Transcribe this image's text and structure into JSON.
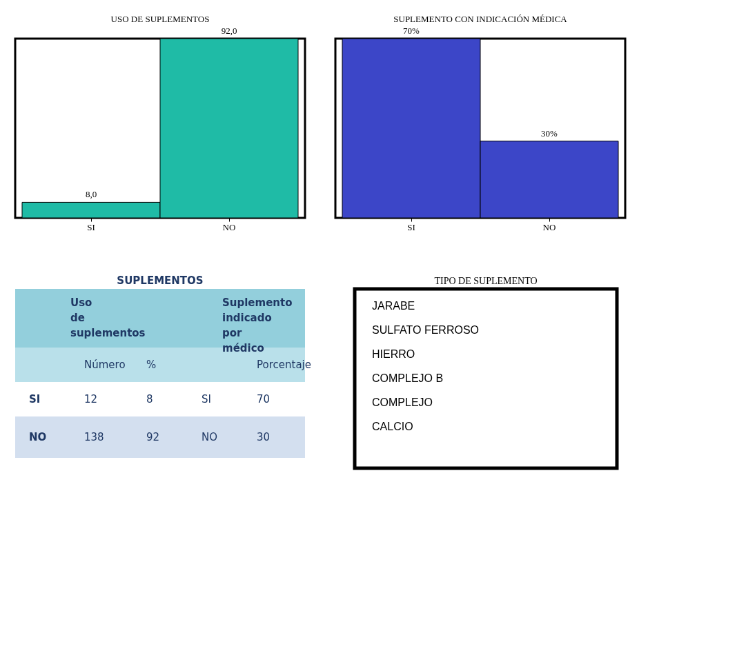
{
  "chart_data": [
    {
      "type": "bar",
      "title": "USO DE SUPLEMENTOS",
      "categories": [
        "SI",
        "NO"
      ],
      "series": [
        {
          "color": "#1fbba6",
          "values": [
            8.0,
            92.0
          ],
          "value_labels": [
            "8,0",
            "92,0"
          ]
        }
      ]
    },
    {
      "type": "bar",
      "title": "SUPLEMENTO CON INDICACIÓN MÉDICA",
      "categories": [
        "SI",
        "NO"
      ],
      "series": [
        {
          "color": "#3c46c8",
          "values": [
            70,
            30
          ],
          "value_labels": [
            "70%",
            "30%"
          ]
        }
      ]
    },
    {
      "type": "other",
      "title": "SUPLEMENTOS",
      "annotations": [
        "Uso de suplementos",
        "Suplemento indicado por médico",
        "Número",
        "%",
        "Porcentaje",
        "SI",
        "12",
        "8",
        "SI",
        "70",
        "NO",
        "138",
        "92",
        "NO",
        "30"
      ]
    },
    {
      "type": "other",
      "title": "TIPO DE SUPLEMENTO",
      "annotations": [
        "JARABE",
        "SULFATO FERROSO",
        "HIERRO",
        "COMPLEJO B",
        "COMPLEJO",
        "CALCIO"
      ]
    }
  ]
}
